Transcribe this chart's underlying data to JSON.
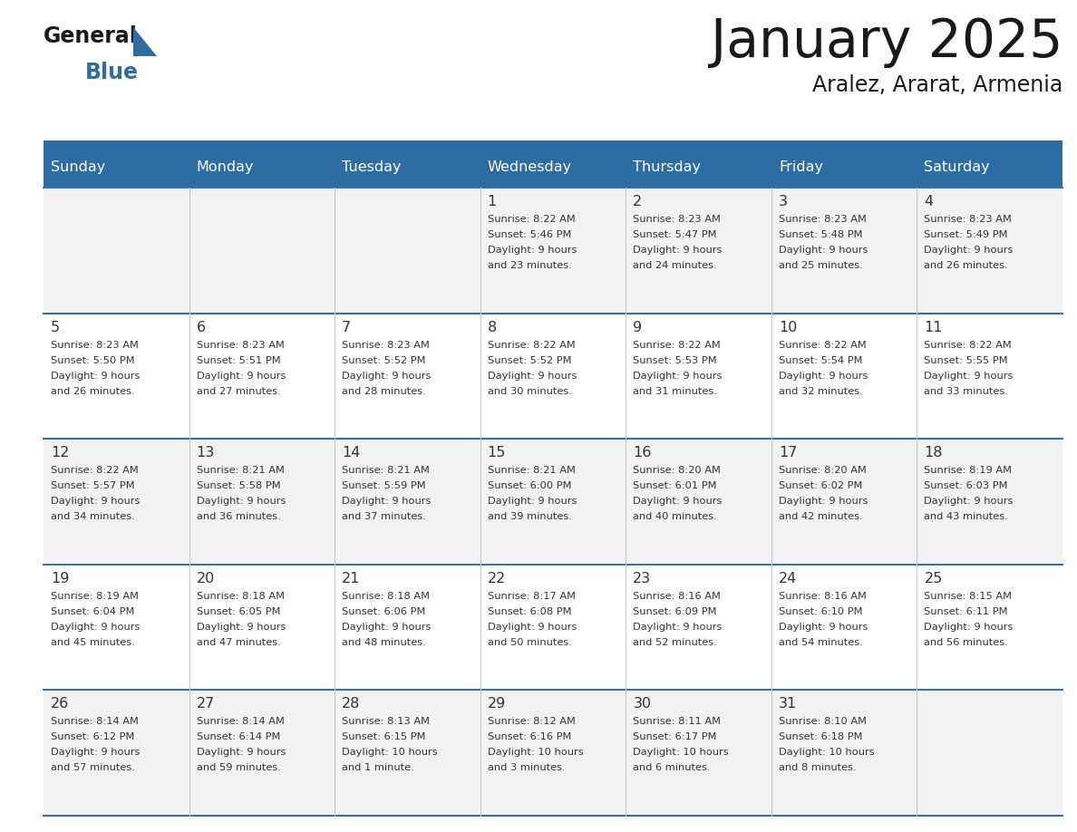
{
  "title": "January 2025",
  "subtitle": "Aralez, Ararat, Armenia",
  "days_of_week": [
    "Sunday",
    "Monday",
    "Tuesday",
    "Wednesday",
    "Thursday",
    "Friday",
    "Saturday"
  ],
  "header_bg": "#2E6DA4",
  "header_text": "#FFFFFF",
  "row_bg": "#FFFFFF",
  "row_bg_alt": "#F2F2F2",
  "cell_border_color": "#3A6FA0",
  "day_number_color": "#333333",
  "info_color": "#333333",
  "title_color": "#1a1a1a",
  "subtitle_color": "#1a1a1a",
  "logo_general_color": "#1a1a1a",
  "logo_blue_color": "#2E6DA4",
  "calendar_data": [
    [
      null,
      null,
      null,
      {
        "day": 1,
        "sunrise": "8:22 AM",
        "sunset": "5:46 PM",
        "daylight_line1": "Daylight: 9 hours",
        "daylight_line2": "and 23 minutes."
      },
      {
        "day": 2,
        "sunrise": "8:23 AM",
        "sunset": "5:47 PM",
        "daylight_line1": "Daylight: 9 hours",
        "daylight_line2": "and 24 minutes."
      },
      {
        "day": 3,
        "sunrise": "8:23 AM",
        "sunset": "5:48 PM",
        "daylight_line1": "Daylight: 9 hours",
        "daylight_line2": "and 25 minutes."
      },
      {
        "day": 4,
        "sunrise": "8:23 AM",
        "sunset": "5:49 PM",
        "daylight_line1": "Daylight: 9 hours",
        "daylight_line2": "and 26 minutes."
      }
    ],
    [
      {
        "day": 5,
        "sunrise": "8:23 AM",
        "sunset": "5:50 PM",
        "daylight_line1": "Daylight: 9 hours",
        "daylight_line2": "and 26 minutes."
      },
      {
        "day": 6,
        "sunrise": "8:23 AM",
        "sunset": "5:51 PM",
        "daylight_line1": "Daylight: 9 hours",
        "daylight_line2": "and 27 minutes."
      },
      {
        "day": 7,
        "sunrise": "8:23 AM",
        "sunset": "5:52 PM",
        "daylight_line1": "Daylight: 9 hours",
        "daylight_line2": "and 28 minutes."
      },
      {
        "day": 8,
        "sunrise": "8:22 AM",
        "sunset": "5:52 PM",
        "daylight_line1": "Daylight: 9 hours",
        "daylight_line2": "and 30 minutes."
      },
      {
        "day": 9,
        "sunrise": "8:22 AM",
        "sunset": "5:53 PM",
        "daylight_line1": "Daylight: 9 hours",
        "daylight_line2": "and 31 minutes."
      },
      {
        "day": 10,
        "sunrise": "8:22 AM",
        "sunset": "5:54 PM",
        "daylight_line1": "Daylight: 9 hours",
        "daylight_line2": "and 32 minutes."
      },
      {
        "day": 11,
        "sunrise": "8:22 AM",
        "sunset": "5:55 PM",
        "daylight_line1": "Daylight: 9 hours",
        "daylight_line2": "and 33 minutes."
      }
    ],
    [
      {
        "day": 12,
        "sunrise": "8:22 AM",
        "sunset": "5:57 PM",
        "daylight_line1": "Daylight: 9 hours",
        "daylight_line2": "and 34 minutes."
      },
      {
        "day": 13,
        "sunrise": "8:21 AM",
        "sunset": "5:58 PM",
        "daylight_line1": "Daylight: 9 hours",
        "daylight_line2": "and 36 minutes."
      },
      {
        "day": 14,
        "sunrise": "8:21 AM",
        "sunset": "5:59 PM",
        "daylight_line1": "Daylight: 9 hours",
        "daylight_line2": "and 37 minutes."
      },
      {
        "day": 15,
        "sunrise": "8:21 AM",
        "sunset": "6:00 PM",
        "daylight_line1": "Daylight: 9 hours",
        "daylight_line2": "and 39 minutes."
      },
      {
        "day": 16,
        "sunrise": "8:20 AM",
        "sunset": "6:01 PM",
        "daylight_line1": "Daylight: 9 hours",
        "daylight_line2": "and 40 minutes."
      },
      {
        "day": 17,
        "sunrise": "8:20 AM",
        "sunset": "6:02 PM",
        "daylight_line1": "Daylight: 9 hours",
        "daylight_line2": "and 42 minutes."
      },
      {
        "day": 18,
        "sunrise": "8:19 AM",
        "sunset": "6:03 PM",
        "daylight_line1": "Daylight: 9 hours",
        "daylight_line2": "and 43 minutes."
      }
    ],
    [
      {
        "day": 19,
        "sunrise": "8:19 AM",
        "sunset": "6:04 PM",
        "daylight_line1": "Daylight: 9 hours",
        "daylight_line2": "and 45 minutes."
      },
      {
        "day": 20,
        "sunrise": "8:18 AM",
        "sunset": "6:05 PM",
        "daylight_line1": "Daylight: 9 hours",
        "daylight_line2": "and 47 minutes."
      },
      {
        "day": 21,
        "sunrise": "8:18 AM",
        "sunset": "6:06 PM",
        "daylight_line1": "Daylight: 9 hours",
        "daylight_line2": "and 48 minutes."
      },
      {
        "day": 22,
        "sunrise": "8:17 AM",
        "sunset": "6:08 PM",
        "daylight_line1": "Daylight: 9 hours",
        "daylight_line2": "and 50 minutes."
      },
      {
        "day": 23,
        "sunrise": "8:16 AM",
        "sunset": "6:09 PM",
        "daylight_line1": "Daylight: 9 hours",
        "daylight_line2": "and 52 minutes."
      },
      {
        "day": 24,
        "sunrise": "8:16 AM",
        "sunset": "6:10 PM",
        "daylight_line1": "Daylight: 9 hours",
        "daylight_line2": "and 54 minutes."
      },
      {
        "day": 25,
        "sunrise": "8:15 AM",
        "sunset": "6:11 PM",
        "daylight_line1": "Daylight: 9 hours",
        "daylight_line2": "and 56 minutes."
      }
    ],
    [
      {
        "day": 26,
        "sunrise": "8:14 AM",
        "sunset": "6:12 PM",
        "daylight_line1": "Daylight: 9 hours",
        "daylight_line2": "and 57 minutes."
      },
      {
        "day": 27,
        "sunrise": "8:14 AM",
        "sunset": "6:14 PM",
        "daylight_line1": "Daylight: 9 hours",
        "daylight_line2": "and 59 minutes."
      },
      {
        "day": 28,
        "sunrise": "8:13 AM",
        "sunset": "6:15 PM",
        "daylight_line1": "Daylight: 10 hours",
        "daylight_line2": "and 1 minute."
      },
      {
        "day": 29,
        "sunrise": "8:12 AM",
        "sunset": "6:16 PM",
        "daylight_line1": "Daylight: 10 hours",
        "daylight_line2": "and 3 minutes."
      },
      {
        "day": 30,
        "sunrise": "8:11 AM",
        "sunset": "6:17 PM",
        "daylight_line1": "Daylight: 10 hours",
        "daylight_line2": "and 6 minutes."
      },
      {
        "day": 31,
        "sunrise": "8:10 AM",
        "sunset": "6:18 PM",
        "daylight_line1": "Daylight: 10 hours",
        "daylight_line2": "and 8 minutes."
      },
      null
    ]
  ]
}
